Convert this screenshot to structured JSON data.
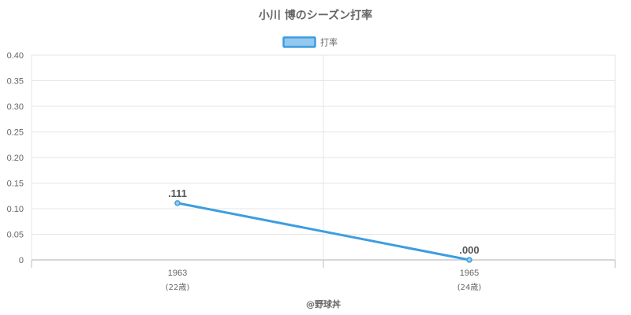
{
  "chart_data": {
    "type": "line",
    "title": "小川 博のシーズン打率",
    "categories": [
      "1963",
      "1965"
    ],
    "category_sublabels": [
      "(22歳)",
      "(24歳)"
    ],
    "series": [
      {
        "name": "打率",
        "values": [
          0.111,
          0.0
        ],
        "data_labels": [
          ".111",
          ".000"
        ]
      }
    ],
    "ylim": [
      0,
      0.4
    ],
    "yticks": [
      0,
      0.05,
      0.1,
      0.15,
      0.2,
      0.25,
      0.3,
      0.35,
      0.4
    ],
    "ytick_labels": [
      "0",
      "0.05",
      "0.10",
      "0.15",
      "0.20",
      "0.25",
      "0.30",
      "0.35",
      "0.40"
    ],
    "xlabel": "",
    "ylabel": "",
    "grid": true,
    "legend_position": "top"
  },
  "credit": "@野球丼",
  "colors": {
    "line": "#3d9de0",
    "legend_fill": "#95c8ef",
    "grid": "#e5e5e5",
    "axis": "#bdbdbd",
    "text": "#666666"
  }
}
